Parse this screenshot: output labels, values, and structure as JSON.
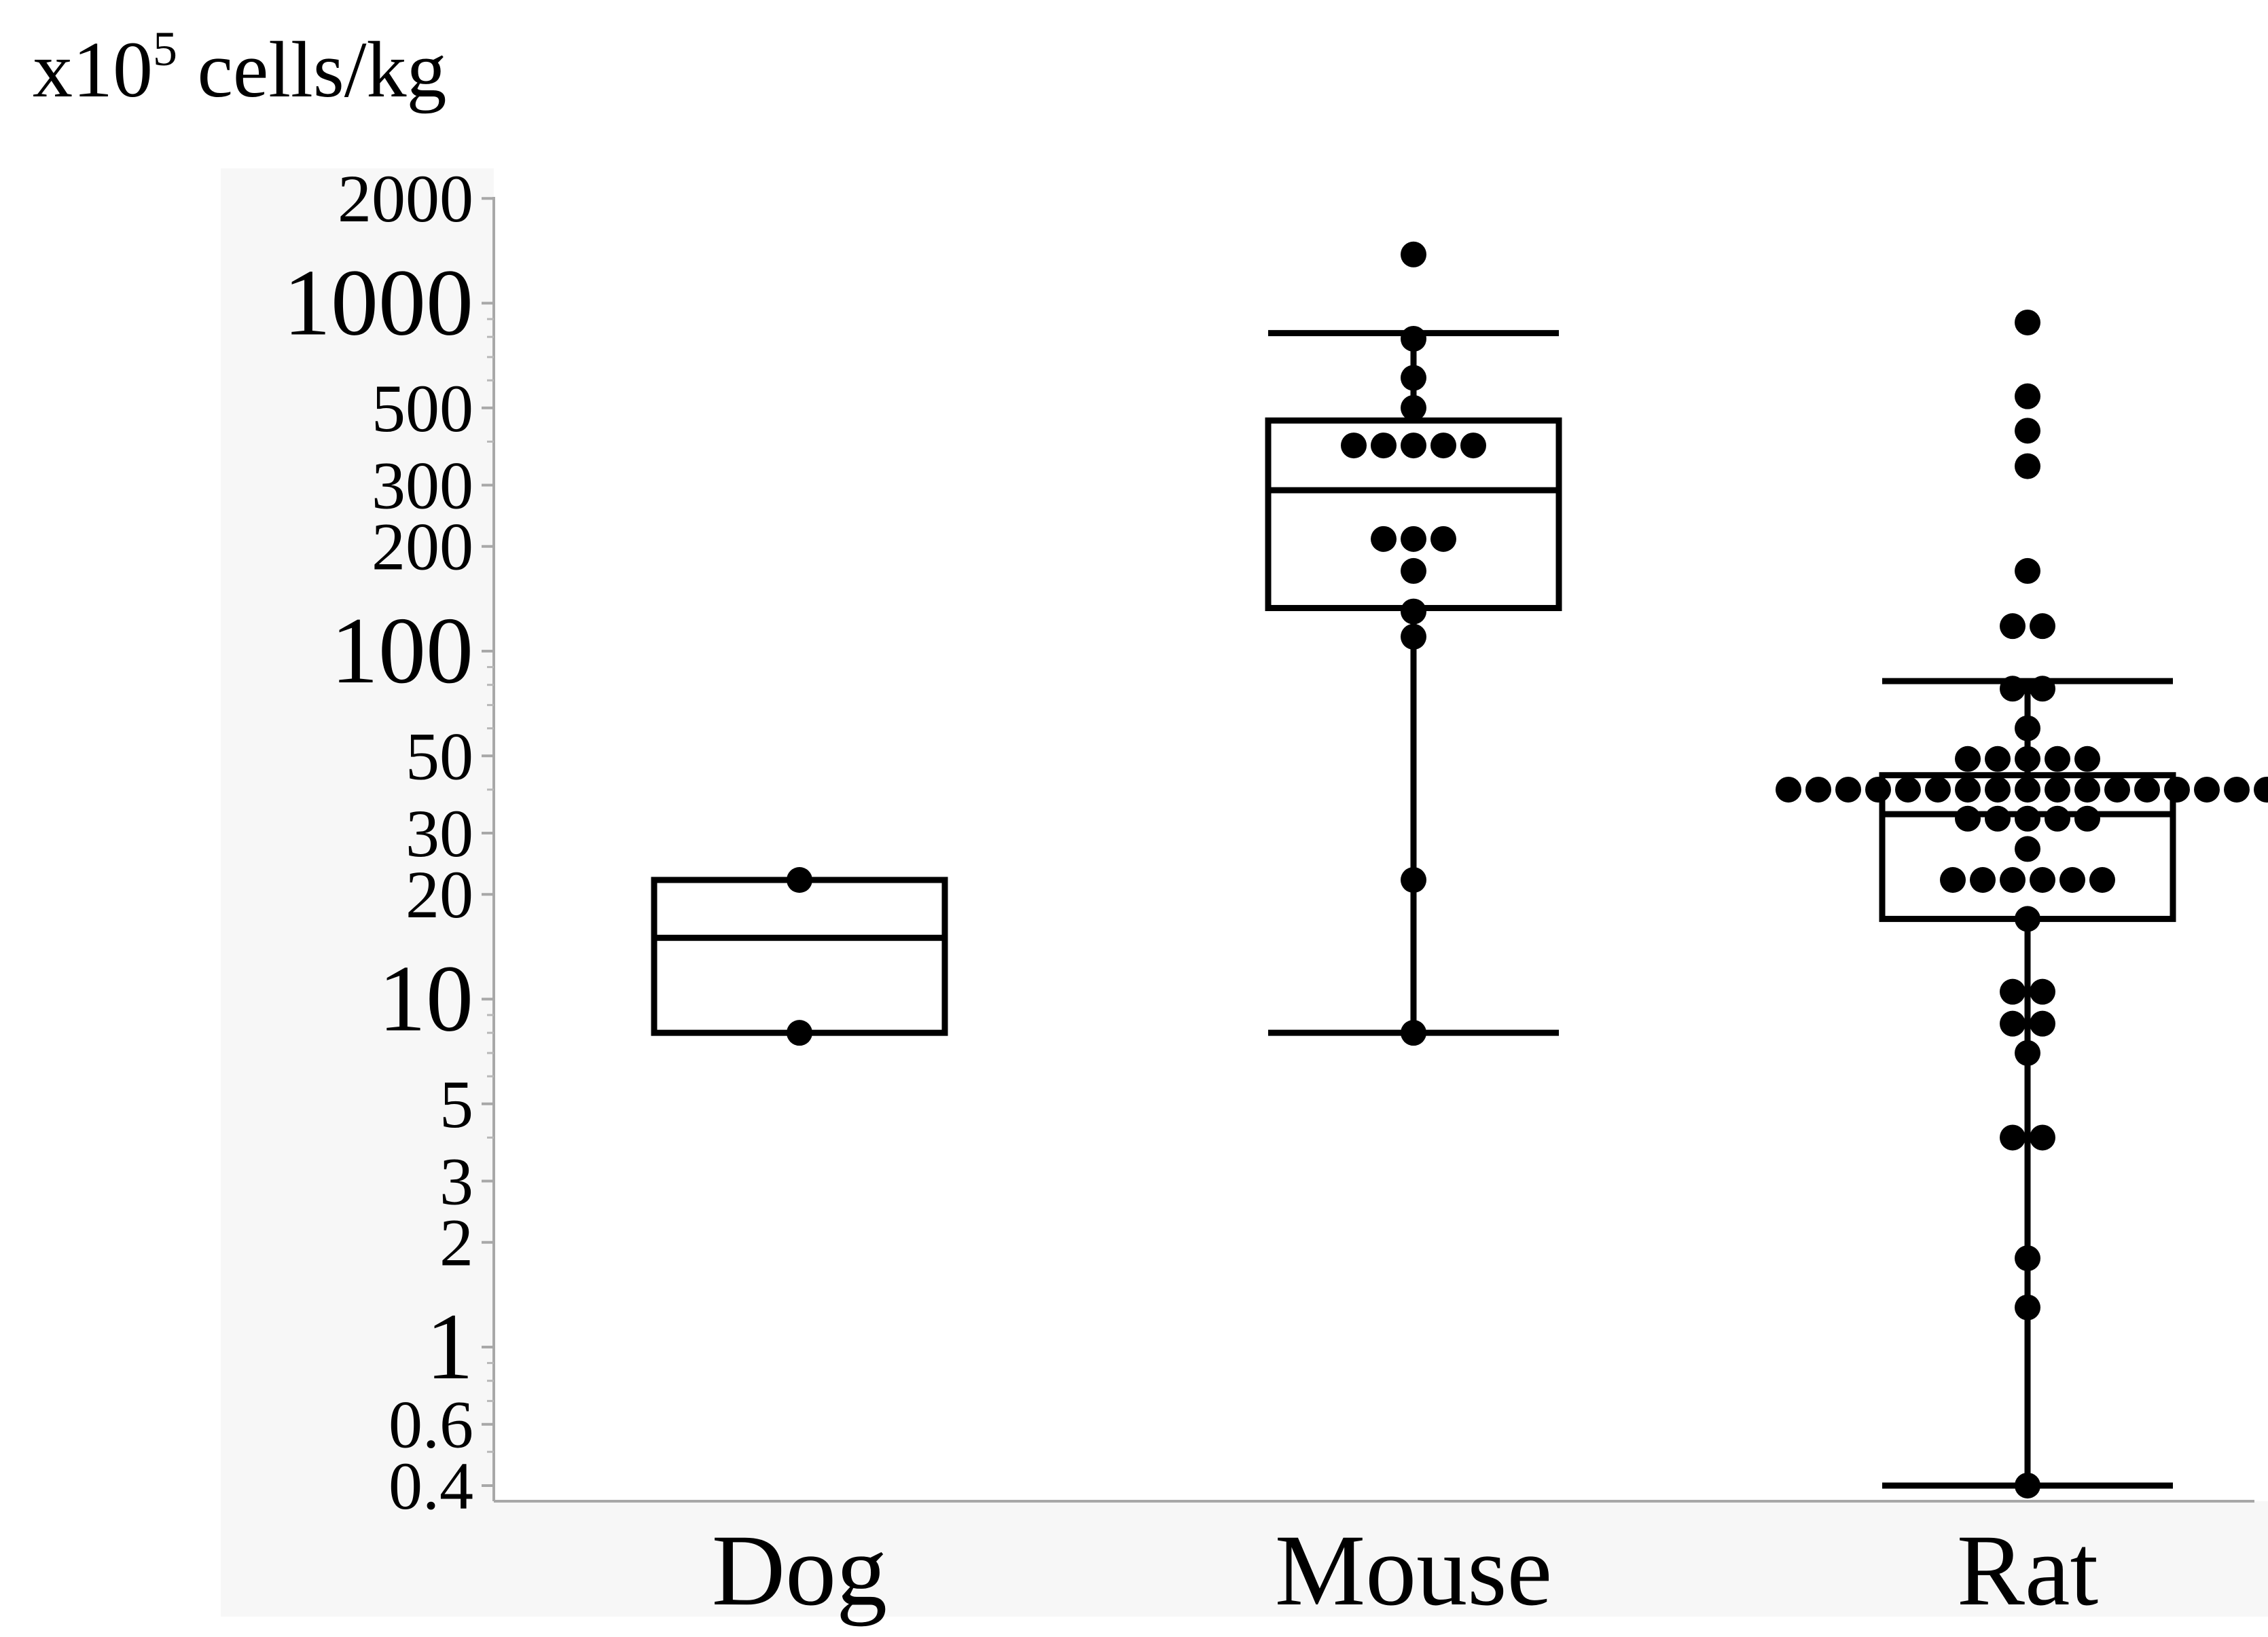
{
  "chart_data": {
    "type": "box",
    "y_scale": "log",
    "ylim": [
      0.38,
      2000
    ],
    "ylabel_parts": {
      "prefix": "x10",
      "superscript": "5",
      "suffix": " cells/kg"
    },
    "y_ticks": [
      {
        "value": 2000,
        "label": "2000",
        "major": false
      },
      {
        "value": 1000,
        "label": "1000",
        "major": true
      },
      {
        "value": 500,
        "label": "500",
        "major": false
      },
      {
        "value": 300,
        "label": "300",
        "major": false
      },
      {
        "value": 200,
        "label": "200",
        "major": false
      },
      {
        "value": 100,
        "label": "100",
        "major": true
      },
      {
        "value": 50,
        "label": "50",
        "major": false
      },
      {
        "value": 30,
        "label": "30",
        "major": false
      },
      {
        "value": 20,
        "label": "20",
        "major": false
      },
      {
        "value": 10,
        "label": "10",
        "major": true
      },
      {
        "value": 5,
        "label": "5",
        "major": false
      },
      {
        "value": 3,
        "label": "3",
        "major": false
      },
      {
        "value": 2,
        "label": "2",
        "major": false
      },
      {
        "value": 1,
        "label": "1",
        "major": true
      },
      {
        "value": 0.6,
        "label": "0.6",
        "major": false
      },
      {
        "value": 0.4,
        "label": "0.4",
        "major": false
      }
    ],
    "minor_ticks": [
      0.5,
      0.7,
      0.8,
      0.9,
      4,
      6,
      7,
      8,
      9,
      40,
      60,
      70,
      80,
      90,
      400,
      600,
      700,
      800,
      900
    ],
    "categories": [
      "Dog",
      "Mouse",
      "Rat"
    ],
    "boxes": [
      {
        "category": "Dog",
        "q1": 8,
        "median": 15,
        "q3": 22,
        "whisker_low": null,
        "whisker_high": null,
        "points": [
          22,
          8
        ]
      },
      {
        "category": "Mouse",
        "q1": 133,
        "median": 290,
        "q3": 460,
        "whisker_low": 8,
        "whisker_high": 820,
        "points": [
          1380,
          790,
          610,
          500,
          390,
          390,
          390,
          390,
          390,
          210,
          210,
          210,
          170,
          130,
          110,
          22,
          8
        ]
      },
      {
        "category": "Rat",
        "q1": 17,
        "median": 34,
        "q3": 44,
        "whisker_low": 0.4,
        "whisker_high": 82,
        "points": [
          880,
          540,
          430,
          340,
          170,
          118,
          118,
          78,
          78,
          60,
          49,
          49,
          49,
          49,
          49,
          40,
          40,
          40,
          40,
          40,
          40,
          40,
          40,
          40,
          40,
          40,
          40,
          40,
          40,
          40,
          40,
          40,
          33,
          33,
          33,
          33,
          33,
          27,
          22,
          22,
          22,
          22,
          22,
          22,
          17,
          10.5,
          10.5,
          8.5,
          8.5,
          7,
          4,
          4,
          1.8,
          1.3,
          0.4
        ]
      }
    ]
  }
}
